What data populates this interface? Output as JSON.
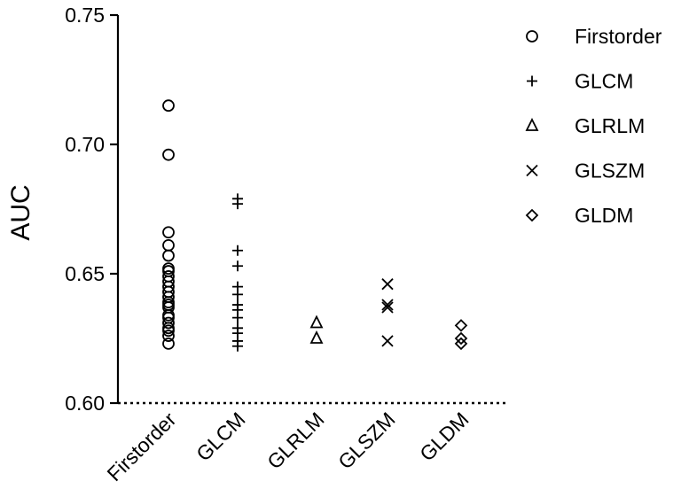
{
  "chart_data": {
    "type": "scatter",
    "title": "",
    "xlabel": "",
    "ylabel": "AUC",
    "ylim": [
      0.6,
      0.75
    ],
    "yticks": [
      "0.60",
      "0.65",
      "0.70",
      "0.75"
    ],
    "categories": [
      "Firstorder",
      "GLCM",
      "GLRLM",
      "GLSZM",
      "GLDM"
    ],
    "grid": false,
    "legend_position": "top-right",
    "series": [
      {
        "name": "Firstorder",
        "marker": "circle",
        "category": "Firstorder",
        "values": [
          0.715,
          0.696,
          0.666,
          0.661,
          0.657,
          0.652,
          0.651,
          0.649,
          0.647,
          0.645,
          0.643,
          0.641,
          0.639,
          0.638,
          0.637,
          0.634,
          0.633,
          0.631,
          0.629,
          0.628,
          0.626,
          0.623
        ]
      },
      {
        "name": "GLCM",
        "marker": "plus",
        "category": "GLCM",
        "values": [
          0.679,
          0.677,
          0.659,
          0.653,
          0.645,
          0.642,
          0.638,
          0.636,
          0.633,
          0.629,
          0.627,
          0.624,
          0.622
        ]
      },
      {
        "name": "GLRLM",
        "marker": "triangle",
        "category": "GLRLM",
        "values": [
          0.631,
          0.625
        ]
      },
      {
        "name": "GLSZM",
        "marker": "cross",
        "category": "GLSZM",
        "values": [
          0.646,
          0.638,
          0.637,
          0.624
        ]
      },
      {
        "name": "GLDM",
        "marker": "diamond",
        "category": "GLDM",
        "values": [
          0.63,
          0.625,
          0.623
        ]
      }
    ]
  }
}
